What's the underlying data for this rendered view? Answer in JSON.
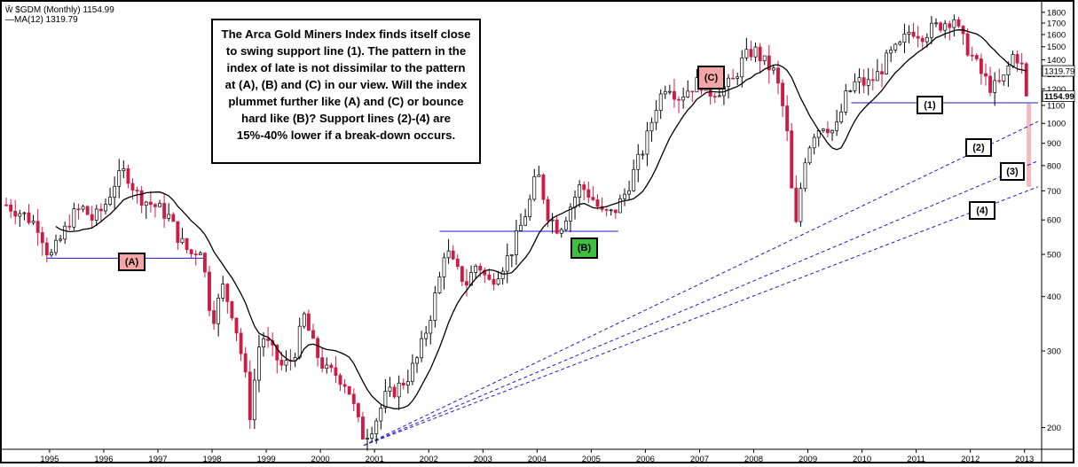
{
  "legend": {
    "symbol": "$GDM (Monthly) 1154.99",
    "ma": "MA(12) 1319.79"
  },
  "annotation": "The Arca Gold Miners Index finds itself close to swing support line (1).  The pattern in the index of late is not dissimilar to the pattern at (A), (B) and (C) in our view.  Will the index plummet further like (A) and (C) or bounce hard like (B)?  Support lines (2)-(4) are 15%-40% lower if a break-down occurs.",
  "labels": {
    "A": "(A)",
    "B": "(B)",
    "C": "(C)",
    "s1": "(1)",
    "s2": "(2)",
    "s3": "(3)",
    "s4": "(4)"
  },
  "price_tags": {
    "ma": "1319.79",
    "last": "1154.99"
  },
  "colors": {
    "up": "#ffffff",
    "down": "#cc1c44",
    "support": "#1a1ad6",
    "ma": "#000000",
    "label_A": "#f4a6a6",
    "label_B": "#3fbf3f",
    "label_C": "#f4a6a6",
    "zone": "#f0a0a8"
  },
  "chart_data": {
    "type": "candlestick",
    "title": "",
    "xlabel": "",
    "ylabel": "",
    "x_ticks": [
      "1995",
      "1996",
      "1997",
      "1998",
      "1999",
      "2000",
      "2001",
      "2002",
      "2003",
      "2004",
      "2005",
      "2006",
      "2007",
      "2008",
      "2009",
      "2010",
      "2011",
      "2012",
      "2013"
    ],
    "y_scale": "log",
    "y_ticks": [
      200,
      300,
      400,
      500,
      600,
      700,
      800,
      900,
      1000,
      1100,
      1200,
      1300,
      1400,
      1500,
      1600,
      1700,
      1800
    ],
    "ylim": [
      180,
      1850
    ],
    "xlim": [
      1994.15,
      2013.25
    ],
    "series": [
      {
        "name": "$GDM (Monthly)",
        "type": "candlestick"
      },
      {
        "name": "MA(12)",
        "type": "line"
      }
    ],
    "close_path": [
      [
        1994.2,
        650
      ],
      [
        1994.5,
        620
      ],
      [
        1994.8,
        580
      ],
      [
        1995.0,
        490
      ],
      [
        1995.2,
        540
      ],
      [
        1995.4,
        610
      ],
      [
        1995.6,
        640
      ],
      [
        1995.8,
        600
      ],
      [
        1996.0,
        640
      ],
      [
        1996.2,
        730
      ],
      [
        1996.4,
        780
      ],
      [
        1996.6,
        690
      ],
      [
        1996.8,
        660
      ],
      [
        1997.0,
        640
      ],
      [
        1997.2,
        610
      ],
      [
        1997.4,
        540
      ],
      [
        1997.6,
        500
      ],
      [
        1997.8,
        520
      ],
      [
        1997.9,
        420
      ],
      [
        1998.0,
        350
      ],
      [
        1998.2,
        420
      ],
      [
        1998.4,
        360
      ],
      [
        1998.6,
        270
      ],
      [
        1998.7,
        215
      ],
      [
        1998.9,
        330
      ],
      [
        1999.1,
        300
      ],
      [
        1999.3,
        275
      ],
      [
        1999.5,
        290
      ],
      [
        1999.7,
        360
      ],
      [
        1999.9,
        300
      ],
      [
        2000.1,
        270
      ],
      [
        2000.3,
        265
      ],
      [
        2000.5,
        250
      ],
      [
        2000.7,
        205
      ],
      [
        2000.8,
        190
      ],
      [
        2001.0,
        205
      ],
      [
        2001.2,
        235
      ],
      [
        2001.4,
        245
      ],
      [
        2001.6,
        260
      ],
      [
        2001.8,
        290
      ],
      [
        2002.0,
        350
      ],
      [
        2002.2,
        440
      ],
      [
        2002.3,
        520
      ],
      [
        2002.5,
        460
      ],
      [
        2002.7,
        430
      ],
      [
        2002.9,
        480
      ],
      [
        2003.1,
        430
      ],
      [
        2003.3,
        460
      ],
      [
        2003.5,
        500
      ],
      [
        2003.7,
        580
      ],
      [
        2003.9,
        680
      ],
      [
        2004.0,
        780
      ],
      [
        2004.2,
        620
      ],
      [
        2004.4,
        570
      ],
      [
        2004.6,
        640
      ],
      [
        2004.8,
        720
      ],
      [
        2005.0,
        680
      ],
      [
        2005.2,
        620
      ],
      [
        2005.4,
        620
      ],
      [
        2005.6,
        680
      ],
      [
        2005.8,
        780
      ],
      [
        2006.0,
        900
      ],
      [
        2006.2,
        1100
      ],
      [
        2006.4,
        1250
      ],
      [
        2006.6,
        1150
      ],
      [
        2006.8,
        1200
      ],
      [
        2007.0,
        1250
      ],
      [
        2007.2,
        1180
      ],
      [
        2007.4,
        1200
      ],
      [
        2007.6,
        1240
      ],
      [
        2007.8,
        1400
      ],
      [
        2008.0,
        1480
      ],
      [
        2008.2,
        1380
      ],
      [
        2008.4,
        1300
      ],
      [
        2008.6,
        1000
      ],
      [
        2008.7,
        700
      ],
      [
        2008.8,
        560
      ],
      [
        2008.9,
        800
      ],
      [
        2009.1,
        950
      ],
      [
        2009.3,
        1000
      ],
      [
        2009.5,
        950
      ],
      [
        2009.7,
        1150
      ],
      [
        2009.9,
        1250
      ],
      [
        2010.1,
        1230
      ],
      [
        2010.3,
        1300
      ],
      [
        2010.5,
        1430
      ],
      [
        2010.7,
        1500
      ],
      [
        2010.9,
        1650
      ],
      [
        2011.1,
        1600
      ],
      [
        2011.3,
        1650
      ],
      [
        2011.5,
        1700
      ],
      [
        2011.7,
        1750
      ],
      [
        2011.8,
        1600
      ],
      [
        2012.0,
        1450
      ],
      [
        2012.2,
        1300
      ],
      [
        2012.4,
        1200
      ],
      [
        2012.6,
        1250
      ],
      [
        2012.8,
        1450
      ],
      [
        2012.9,
        1400
      ],
      [
        2013.0,
        1300
      ],
      [
        2013.1,
        1154.99
      ]
    ],
    "ma_last": 1319.79,
    "last_close": 1154.99,
    "support_lines": [
      {
        "label": "(1)",
        "from": [
          2009.8,
          1115
        ],
        "to": [
          2013.25,
          1115
        ]
      },
      {
        "label": "(2)",
        "from": [
          2000.8,
          182
        ],
        "to": [
          2013.25,
          1010
        ]
      },
      {
        "label": "(3)",
        "from": [
          2000.8,
          182
        ],
        "to": [
          2013.25,
          820
        ]
      },
      {
        "label": "(4)",
        "from": [
          2000.8,
          182
        ],
        "to": [
          2013.25,
          715
        ]
      },
      {
        "label": "(A)",
        "from": [
          1994.95,
          490
        ],
        "to": [
          1997.9,
          490
        ]
      },
      {
        "label": "(B)",
        "from": [
          2002.2,
          565
        ],
        "to": [
          2005.5,
          565
        ]
      }
    ]
  }
}
